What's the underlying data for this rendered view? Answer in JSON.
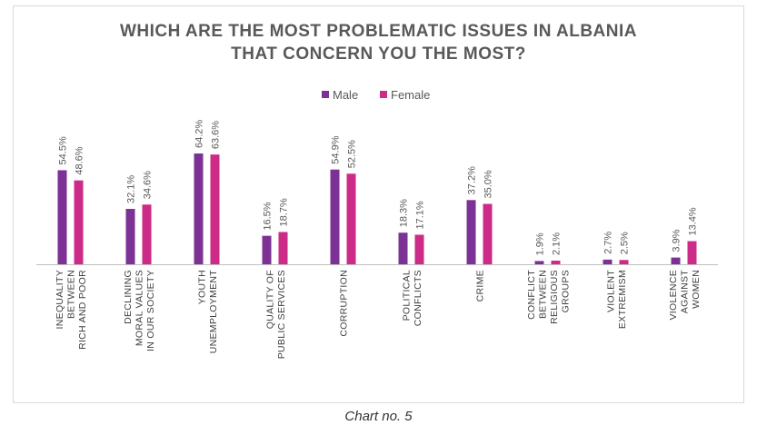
{
  "caption": "Chart no. 5",
  "colors": {
    "male": "#7b3294",
    "female": "#cc2b87"
  },
  "chart_data": {
    "type": "bar",
    "title_lines": [
      "WHICH ARE THE MOST PROBLEMATIC ISSUES IN ALBANIA",
      "THAT CONCERN YOU THE MOST?"
    ],
    "legend_position": "top",
    "categories": [
      [
        "INEQUALITY",
        "BETWEEN",
        "RICH AND POOR"
      ],
      [
        "DECLINING",
        "MORAL VALUES",
        "IN OUR SOCIETY"
      ],
      [
        "YOUTH",
        "UNEMPLOYMENT"
      ],
      [
        "QUALITY OF",
        "PUBLIC SERVICES"
      ],
      [
        "CORRUPTION"
      ],
      [
        "POLITICAL",
        "CONFLICTS"
      ],
      [
        "CRIME"
      ],
      [
        "CONFLICT",
        "BETWEEN",
        "RELIGIOUS",
        "GROUPS"
      ],
      [
        "VIOLENT",
        "EXTREMISM"
      ],
      [
        "VIOLENCE",
        "AGAINST",
        "WOMEN"
      ]
    ],
    "series": [
      {
        "name": "Male",
        "values": [
          54.5,
          32.1,
          64.2,
          16.5,
          54.9,
          18.3,
          37.2,
          1.9,
          2.7,
          3.9
        ],
        "labels": [
          "54.5%",
          "32.1%",
          "64.2%",
          "16.5%",
          "54.9%",
          "18.3%",
          "37.2%",
          "1.9%",
          "2.7%",
          "3.9%"
        ]
      },
      {
        "name": "Female",
        "values": [
          48.6,
          34.6,
          63.6,
          18.7,
          52.5,
          17.1,
          35.0,
          2.1,
          2.5,
          13.4
        ],
        "labels": [
          "48.6%",
          "34.6%",
          "63.6%",
          "18.7%",
          "52.5%",
          "17.1%",
          "35.0%",
          "2.1%",
          "2.5%",
          "13.4%"
        ]
      }
    ],
    "ylim": [
      0,
      100
    ],
    "grid": false
  }
}
